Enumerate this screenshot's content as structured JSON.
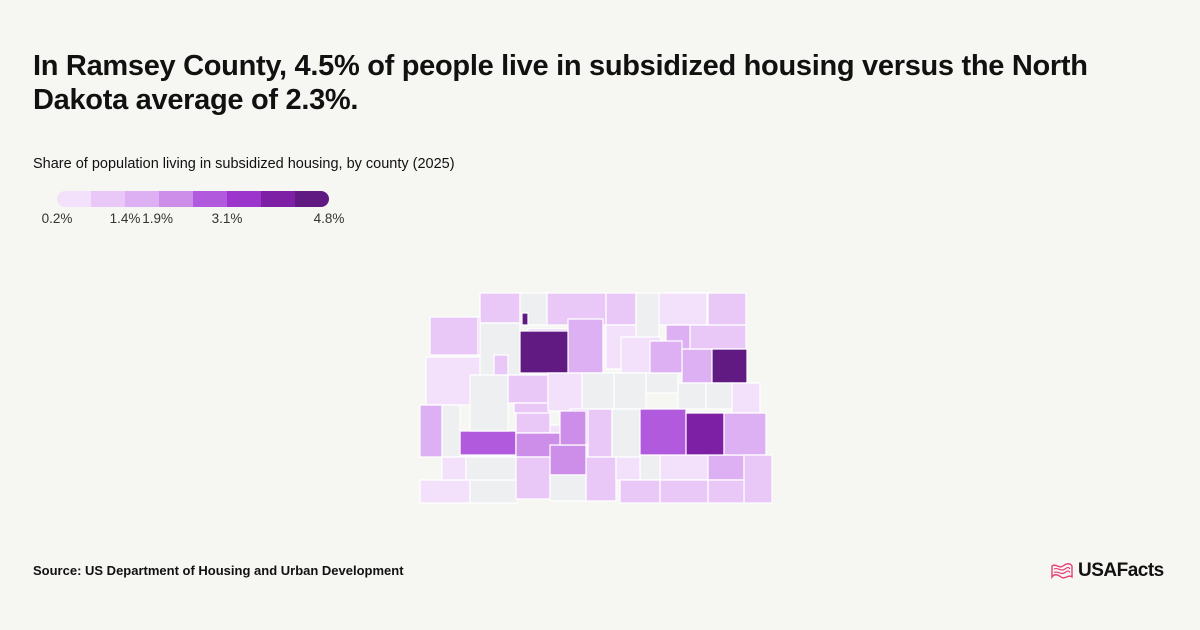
{
  "title": "In Ramsey County, 4.5% of people live in subsidized housing versus the North Dakota average of 2.3%.",
  "subtitle": "Share of population living in subsidized housing, by county (2025)",
  "legend": {
    "colors": [
      "#f3e1fb",
      "#e9c8f7",
      "#dcb0f2",
      "#cc8ee9",
      "#b25ade",
      "#9b35cc",
      "#7d20a6",
      "#611a82"
    ],
    "ticks": [
      {
        "label": "0.2%",
        "pos": 0
      },
      {
        "label": "1.4%",
        "pos": 0.25
      },
      {
        "label": "1.9%",
        "pos": 0.37
      },
      {
        "label": "3.1%",
        "pos": 0.625
      },
      {
        "label": "4.8%",
        "pos": 1
      }
    ]
  },
  "map": {
    "no_data_color": "#eeeff1",
    "counties": [
      {
        "c": 1
      },
      {
        "c": 1
      },
      {
        "c": 0
      },
      {
        "c": 1
      },
      {
        "c": 1
      },
      {
        "c": 1
      },
      {
        "c": 0
      },
      {
        "c": -1
      },
      {
        "c": -1
      },
      {
        "c": 2
      },
      {
        "c": 2
      },
      {
        "c": -1
      },
      {
        "c": 0
      },
      {
        "c": 2
      },
      {
        "c": 0
      },
      {
        "c": 1
      },
      {
        "c": 4
      },
      {
        "c": 1
      },
      {
        "c": 1
      },
      {
        "c": 0
      },
      {
        "c": 7
      },
      {
        "c": 2
      },
      {
        "c": 1
      },
      {
        "c": 7
      },
      {
        "c": 0
      },
      {
        "c": -1
      },
      {
        "c": 0
      },
      {
        "c": 0
      },
      {
        "c": -1
      },
      {
        "c": -1
      },
      {
        "c": -1
      },
      {
        "c": -1
      },
      {
        "c": -1
      },
      {
        "c": -1
      },
      {
        "c": 1
      },
      {
        "c": 1
      },
      {
        "c": 1
      },
      {
        "c": -1
      },
      {
        "c": 0
      },
      {
        "c": 0
      },
      {
        "c": -1
      },
      {
        "c": 2
      },
      {
        "c": -1
      },
      {
        "c": 4
      },
      {
        "c": 6
      },
      {
        "c": 2
      },
      {
        "c": 1
      },
      {
        "c": -1
      },
      {
        "c": 3
      },
      {
        "c": 3
      },
      {
        "c": 1
      },
      {
        "c": 0
      },
      {
        "c": 1
      },
      {
        "c": 3
      },
      {
        "c": 1
      },
      {
        "c": -1
      },
      {
        "c": 1
      },
      {
        "c": 2
      },
      {
        "c": 2
      },
      {
        "c": 1
      },
      {
        "c": 1
      }
    ]
  },
  "source": "Source: US Department of Housing and Urban Development",
  "brand": {
    "name": "USAFacts",
    "icon": "usa-flag-icon",
    "accent_color": "#e8407a"
  }
}
